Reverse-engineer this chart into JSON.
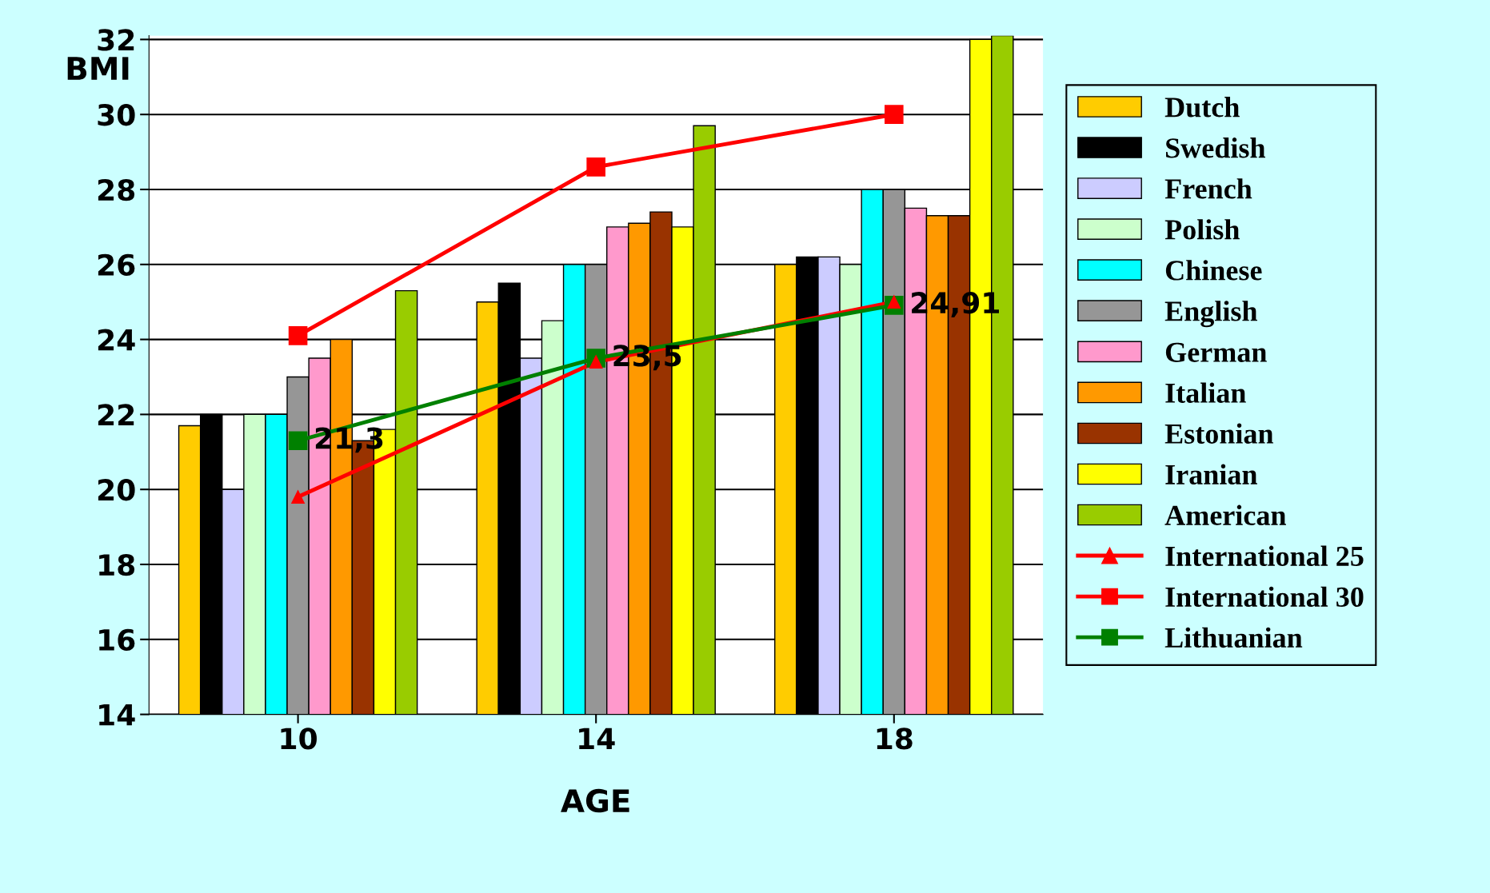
{
  "chart_data": {
    "type": "bar",
    "xlabel": "AGE",
    "ylabel": "BMI",
    "categories": [
      "10",
      "14",
      "18"
    ],
    "series": [
      {
        "name": "Dutch",
        "color": "#ffcc00",
        "values": [
          21.7,
          25.0,
          26.0
        ]
      },
      {
        "name": "Swedish",
        "color": "#000000",
        "values": [
          22.0,
          25.5,
          26.2
        ]
      },
      {
        "name": "French",
        "color": "#ccccff",
        "values": [
          20.0,
          23.5,
          26.2
        ]
      },
      {
        "name": "Polish",
        "color": "#ccffcc",
        "values": [
          22.0,
          24.5,
          26.0
        ]
      },
      {
        "name": "Chinese",
        "color": "#00ffff",
        "values": [
          22.0,
          26.0,
          28.0
        ]
      },
      {
        "name": "English",
        "color": "#969696",
        "values": [
          23.0,
          26.0,
          28.0
        ]
      },
      {
        "name": "German",
        "color": "#ff99cc",
        "values": [
          23.5,
          27.0,
          27.5
        ]
      },
      {
        "name": "Italian",
        "color": "#ff9900",
        "values": [
          24.0,
          27.1,
          27.3
        ]
      },
      {
        "name": "Estonian",
        "color": "#993300",
        "values": [
          21.3,
          27.4,
          27.3
        ]
      },
      {
        "name": "Iranian",
        "color": "#ffff00",
        "values": [
          21.6,
          27.0,
          32.0
        ]
      },
      {
        "name": "American",
        "color": "#99cc00",
        "values": [
          25.3,
          29.7,
          32.1
        ]
      },
      {
        "name": "International 25",
        "type": "line",
        "color": "#ff0000",
        "marker": "triangle",
        "values": [
          19.8,
          23.4,
          25.0
        ]
      },
      {
        "name": "International 30",
        "type": "line",
        "color": "#ff0000",
        "marker": "square",
        "values": [
          24.1,
          28.6,
          30.0
        ]
      },
      {
        "name": "Lithuanian",
        "type": "line",
        "color": "#008000",
        "marker": "square",
        "values": [
          21.3,
          23.5,
          24.91
        ],
        "value_labels": [
          "21,3",
          "23,5",
          "24,91"
        ]
      }
    ],
    "ylim": [
      14,
      32.1
    ],
    "yticks": [
      14,
      16,
      18,
      20,
      22,
      24,
      26,
      28,
      30,
      32
    ],
    "grid": "y",
    "legend": "right"
  }
}
